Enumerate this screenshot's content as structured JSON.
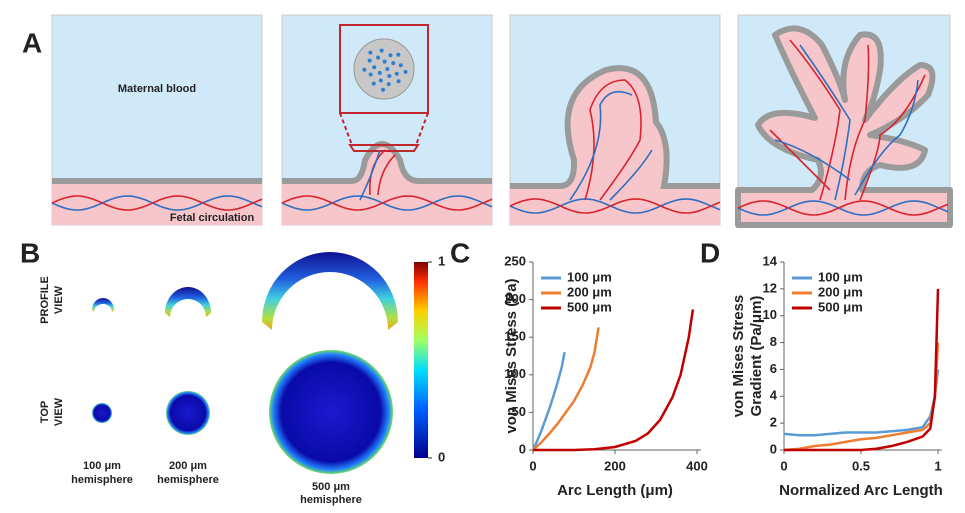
{
  "panel_labels": [
    "A",
    "B",
    "C",
    "D"
  ],
  "panel_a": {
    "maternal_label": "Maternal blood",
    "fetal_label": "Fetal circulation"
  },
  "panel_b": {
    "profile_label": [
      "PROFILE",
      "VIEW"
    ],
    "top_label": [
      "TOP",
      "VIEW"
    ],
    "hemisphere_labels": [
      [
        "100 μm",
        "hemisphere"
      ],
      [
        "200 μm",
        "hemisphere"
      ],
      [
        "500 μm",
        "hemisphere"
      ]
    ],
    "colorbar_ticks": [
      0,
      1
    ]
  },
  "chart_data": [
    {
      "type": "line",
      "ylabel": [
        "von Mises Stress (Pa)"
      ],
      "xlabel": "Arc Length (μm)",
      "xlim": [
        0,
        400
      ],
      "xticks": [
        0,
        200,
        400
      ],
      "ylim": [
        0,
        250
      ],
      "yticks": [
        0,
        50,
        100,
        150,
        200,
        250
      ],
      "series": [
        {
          "name": "100 μm",
          "color": "#5b9bd5",
          "x": [
            0,
            10,
            20,
            30,
            40,
            50,
            60,
            70,
            77
          ],
          "values": [
            0,
            12,
            25,
            40,
            55,
            72,
            90,
            110,
            130
          ]
        },
        {
          "name": "200 μm",
          "color": "#ed7d31",
          "x": [
            0,
            20,
            40,
            60,
            80,
            100,
            120,
            140,
            150,
            160
          ],
          "values": [
            0,
            10,
            22,
            35,
            50,
            65,
            85,
            110,
            130,
            163
          ]
        },
        {
          "name": "500 μm",
          "color": "#c00000",
          "x": [
            0,
            50,
            100,
            150,
            200,
            250,
            280,
            310,
            340,
            360,
            380,
            390
          ],
          "values": [
            0,
            0,
            0,
            1,
            4,
            12,
            22,
            40,
            70,
            100,
            150,
            187
          ]
        }
      ]
    },
    {
      "type": "line",
      "ylabel": [
        "von Mises Stress",
        "Gradient  (Pa/μm)"
      ],
      "xlabel": "Normalized Arc Length",
      "xlim": [
        0,
        1
      ],
      "xticks": [
        0,
        0.5,
        1
      ],
      "ylim": [
        0,
        14
      ],
      "yticks": [
        0,
        2,
        4,
        6,
        8,
        10,
        12,
        14
      ],
      "series": [
        {
          "name": "100 μm",
          "color": "#5b9bd5",
          "x": [
            0,
            0.1,
            0.2,
            0.3,
            0.4,
            0.5,
            0.6,
            0.7,
            0.8,
            0.9,
            0.95,
            0.98,
            1
          ],
          "values": [
            1.2,
            1.1,
            1.1,
            1.2,
            1.3,
            1.3,
            1.3,
            1.4,
            1.5,
            1.7,
            2.5,
            4,
            6
          ]
        },
        {
          "name": "200 μm",
          "color": "#ed7d31",
          "x": [
            0,
            0.1,
            0.2,
            0.3,
            0.4,
            0.5,
            0.6,
            0.7,
            0.8,
            0.9,
            0.95,
            0.98,
            1
          ],
          "values": [
            0,
            0.1,
            0.3,
            0.4,
            0.6,
            0.8,
            0.9,
            1.1,
            1.3,
            1.5,
            2,
            4,
            8
          ]
        },
        {
          "name": "500 μm",
          "color": "#c00000",
          "x": [
            0,
            0.1,
            0.2,
            0.3,
            0.4,
            0.5,
            0.6,
            0.7,
            0.8,
            0.9,
            0.95,
            0.98,
            1
          ],
          "values": [
            0,
            0,
            0,
            0,
            0,
            0,
            0.1,
            0.3,
            0.6,
            1,
            1.6,
            4,
            12
          ]
        }
      ]
    }
  ]
}
